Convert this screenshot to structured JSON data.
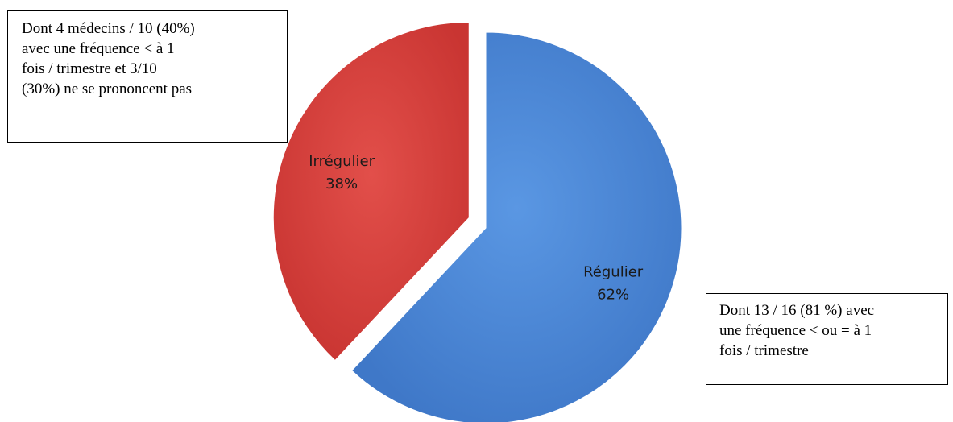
{
  "chart_data": {
    "type": "pie",
    "slices": [
      {
        "label": "Régulier",
        "value": 62,
        "value_label": "62%",
        "color": "#4a86d6"
      },
      {
        "label": "Irrégulier",
        "value": 38,
        "value_label": "38%",
        "color": "#d9403c"
      }
    ],
    "annotations": [
      {
        "slice": "Irrégulier",
        "text": "Dont 4 médecins / 10 (40%)\navec une fréquence < à 1\nfois / trimestre et 3/10\n(30%) ne se prononcent pas"
      },
      {
        "slice": "Régulier",
        "text": "Dont 13 / 16 (81 %) avec\nune fréquence < ou = à 1\nfois / trimestre"
      }
    ]
  }
}
